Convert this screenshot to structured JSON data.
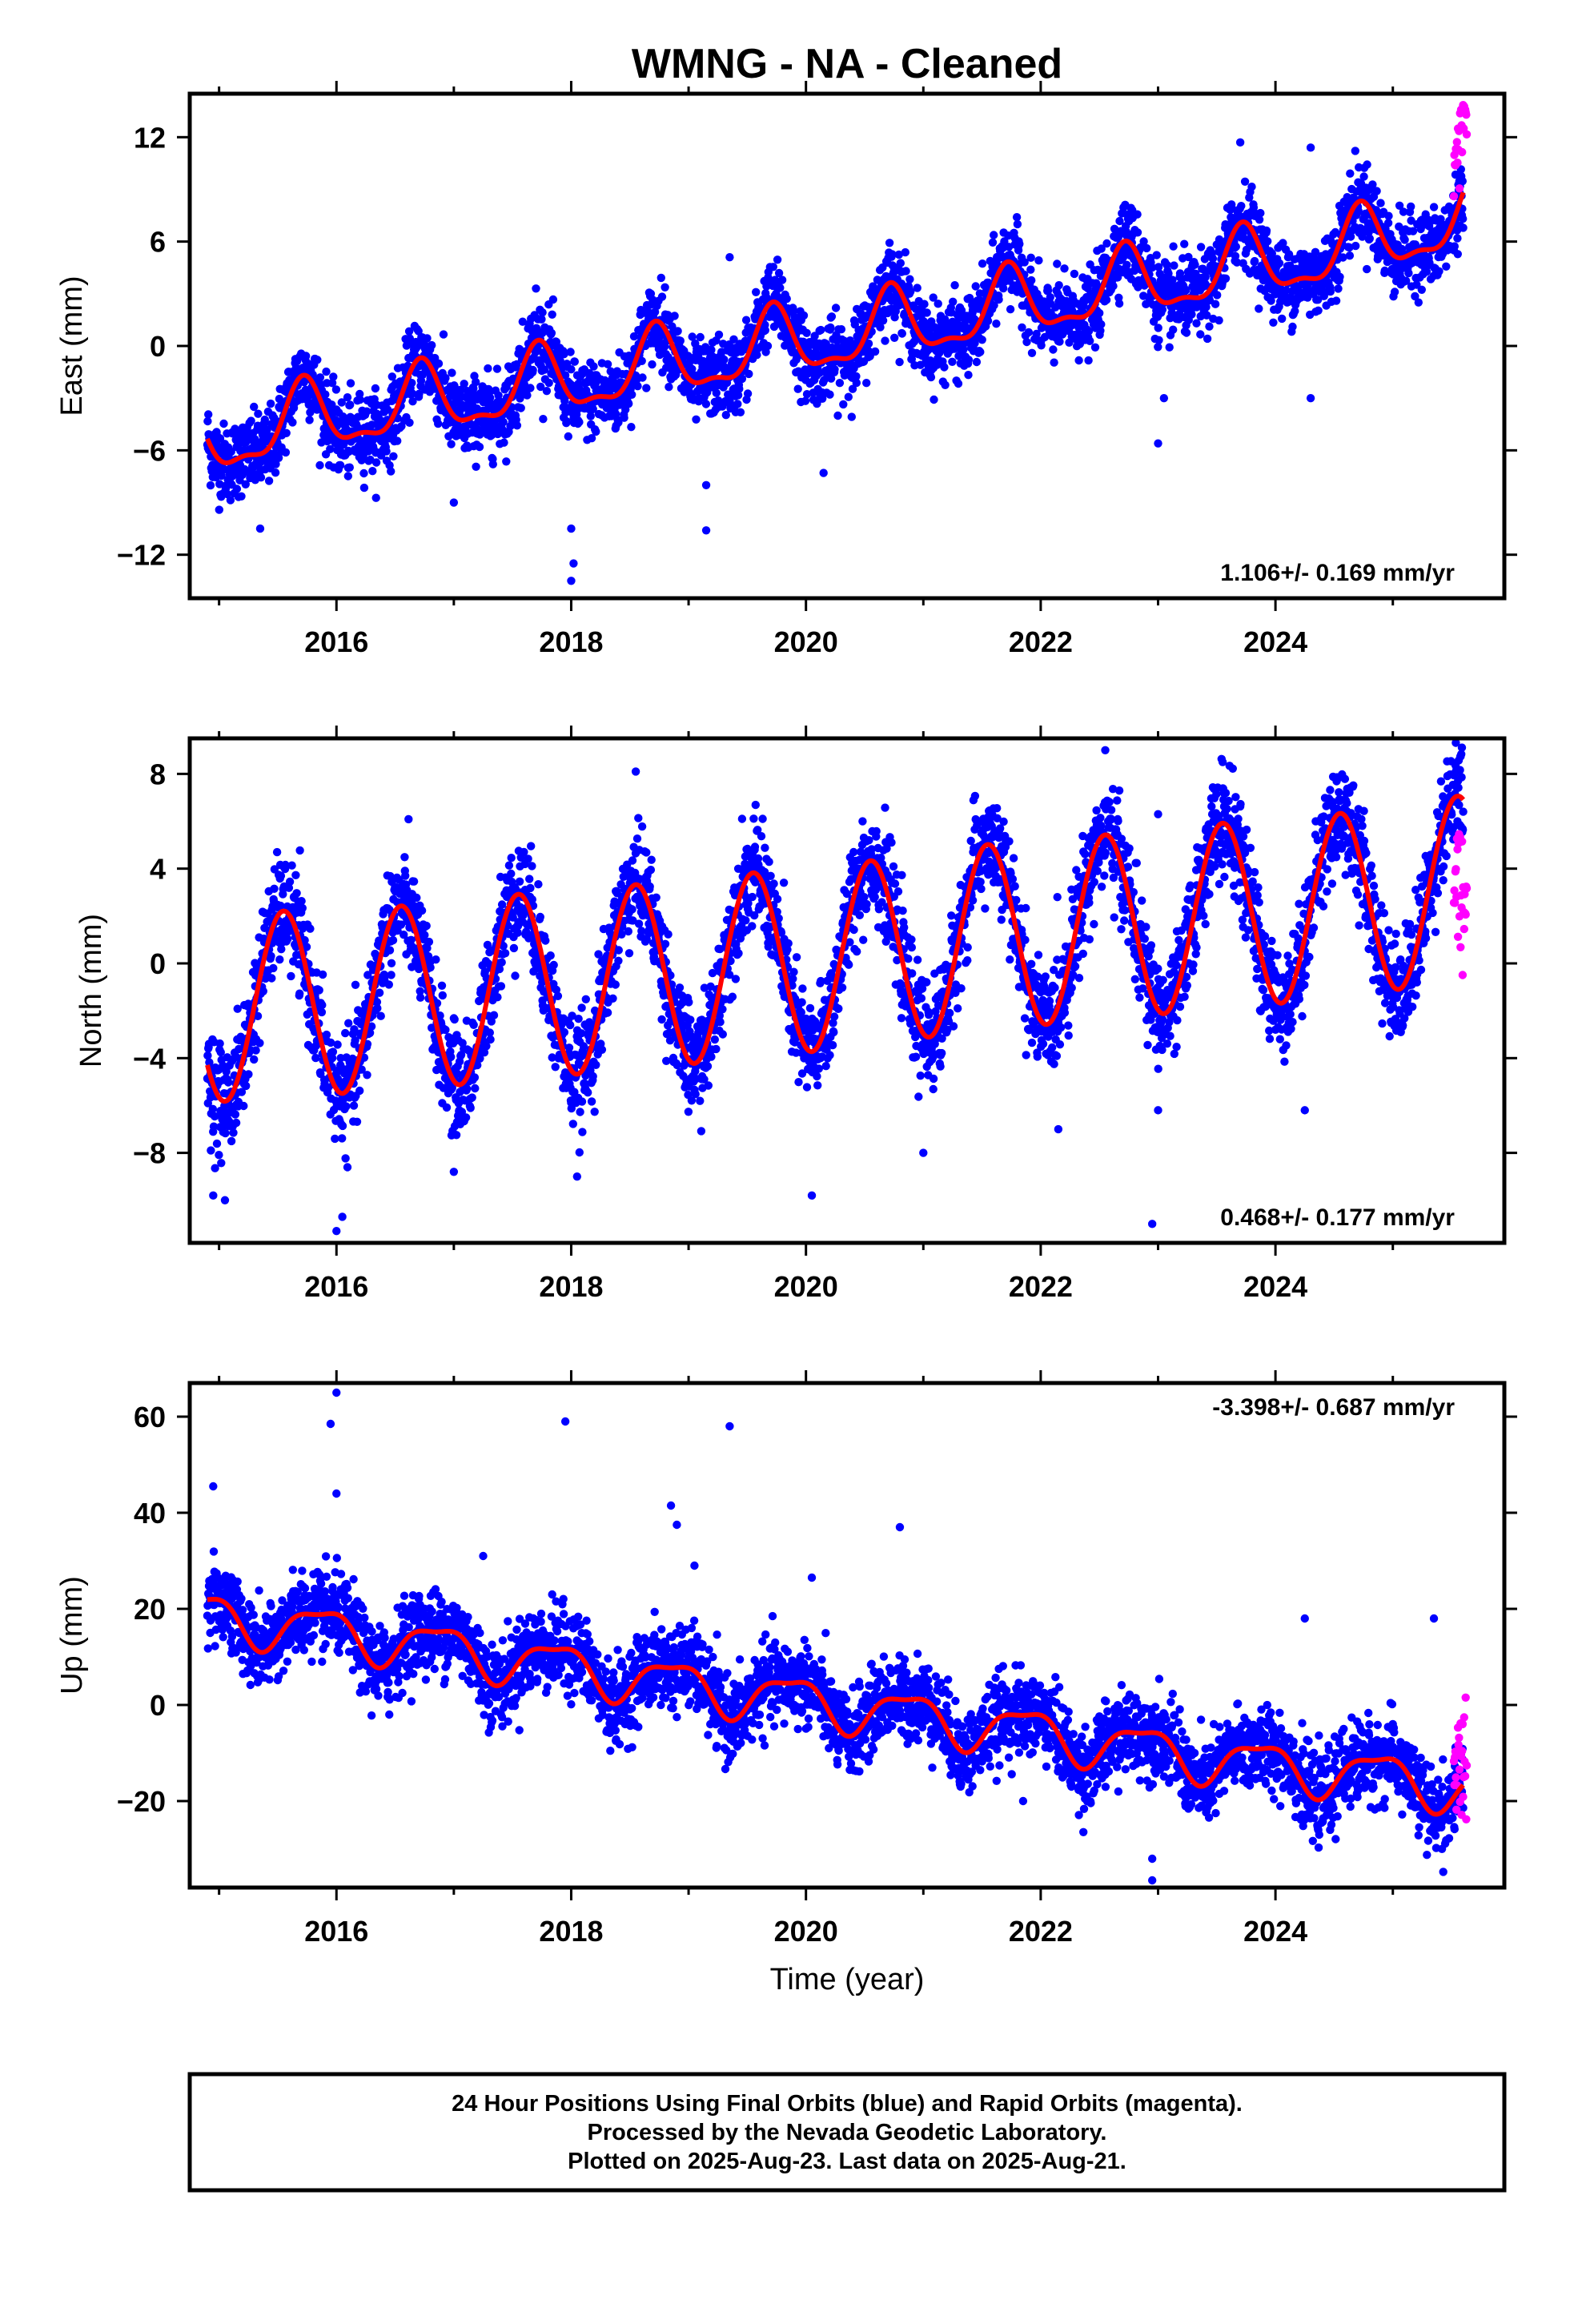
{
  "title": "WMNG  - NA - Cleaned",
  "footer": {
    "line1": "24 Hour Positions Using Final Orbits (blue) and Rapid Orbits (magenta).",
    "line2": "Processed by the Nevada Geodetic Laboratory.",
    "line3": "Plotted on 2025-Aug-23. Last data on 2025-Aug-21."
  },
  "colors": {
    "final": "#0000ff",
    "rapid": "#ff00ff",
    "model": "#ff0000",
    "frame": "#000000"
  },
  "chart_data": [
    {
      "type": "scatter",
      "component": "east",
      "ylabel": "East (mm)",
      "xlabel": "",
      "xlim": [
        2014.75,
        2025.95
      ],
      "ylim": [
        -14.5,
        14.5
      ],
      "xticks": [
        2016,
        2018,
        2020,
        2022,
        2024
      ],
      "xtick_labels": [
        "2016",
        "2018",
        "2020",
        "2022",
        "2024"
      ],
      "yticks": [
        -12,
        -6,
        0,
        6,
        12
      ],
      "ytick_labels": [
        "−12",
        "−6",
        "0",
        "6",
        "12"
      ],
      "rate_label": "1.106+/- 0.169 mm/yr",
      "rate_position": "bottom-right",
      "model": {
        "start": 2014.9,
        "end": 2025.6,
        "trend_points": [
          [
            2014.9,
            -5.7
          ],
          [
            2015.6,
            -4.4
          ],
          [
            2016.6,
            -3.4
          ],
          [
            2017.6,
            -2.4
          ],
          [
            2018.6,
            -1.3
          ],
          [
            2019.6,
            -0.2
          ],
          [
            2020.6,
            0.9
          ],
          [
            2021.6,
            2.1
          ],
          [
            2022.6,
            3.3
          ],
          [
            2023.6,
            4.4
          ],
          [
            2024.6,
            5.5
          ],
          [
            2025.6,
            7.4
          ]
        ],
        "annual_amp": 1.9,
        "annual_peak": 0.72,
        "semiannual_amp": 0.7,
        "semiannual_peak": 0.72
      },
      "noise": 1.1,
      "rapid": {
        "start": 2025.52,
        "end": 2025.63,
        "offset": 4.0,
        "spread": 1.5
      },
      "outliers": [
        [
          2018.0,
          -13.5
        ],
        [
          2018.02,
          -12.5
        ],
        [
          2018.0,
          -10.5
        ],
        [
          2019.15,
          -10.6
        ],
        [
          2019.15,
          -8.0
        ],
        [
          2020.15,
          -7.3
        ],
        [
          2017.0,
          -9.0
        ],
        [
          2015.35,
          -10.5
        ],
        [
          2023.0,
          -5.6
        ],
        [
          2023.05,
          -3.0
        ],
        [
          2024.3,
          -3.0
        ],
        [
          2024.3,
          11.4
        ],
        [
          2019.35,
          5.1
        ],
        [
          2023.7,
          11.7
        ],
        [
          2017.7,
          3.3
        ],
        [
          2016.1,
          -7.0
        ]
      ]
    },
    {
      "type": "scatter",
      "component": "north",
      "ylabel": "North (mm)",
      "xlabel": "",
      "xlim": [
        2014.75,
        2025.95
      ],
      "ylim": [
        -11.8,
        9.5
      ],
      "xticks": [
        2016,
        2018,
        2020,
        2022,
        2024
      ],
      "xtick_labels": [
        "2016",
        "2018",
        "2020",
        "2022",
        "2024"
      ],
      "yticks": [
        -8,
        -4,
        0,
        4,
        8
      ],
      "ytick_labels": [
        "−8",
        "−4",
        "0",
        "4",
        "8"
      ],
      "rate_label": "0.468+/- 0.177 mm/yr",
      "rate_position": "bottom-right",
      "model": {
        "start": 2014.9,
        "end": 2025.6,
        "trend_points": [
          [
            2014.9,
            -2.0
          ],
          [
            2015.5,
            -1.7
          ],
          [
            2016.5,
            -1.5
          ],
          [
            2017.5,
            -1.0
          ],
          [
            2018.5,
            -0.6
          ],
          [
            2019.5,
            -0.1
          ],
          [
            2020.5,
            0.4
          ],
          [
            2021.5,
            1.1
          ],
          [
            2022.5,
            1.5
          ],
          [
            2023.5,
            2.0
          ],
          [
            2024.5,
            2.4
          ],
          [
            2025.6,
            3.2
          ]
        ],
        "annual_amp": 3.9,
        "annual_peak": 0.55,
        "semiannual_amp": 0.0,
        "semiannual_peak": 0.0
      },
      "noise": 1.1,
      "rapid": {
        "start": 2025.52,
        "end": 2025.63,
        "offset": -4.0,
        "spread": 1.8
      },
      "outliers": [
        [
          2016.0,
          -11.3
        ],
        [
          2016.05,
          -10.7
        ],
        [
          2015.05,
          -10.0
        ],
        [
          2014.95,
          -9.8
        ],
        [
          2020.05,
          -9.8
        ],
        [
          2018.05,
          -9.0
        ],
        [
          2021.0,
          -8.0
        ],
        [
          2017.0,
          -8.8
        ],
        [
          2022.55,
          9.0
        ],
        [
          2018.55,
          8.1
        ],
        [
          2023.55,
          8.5
        ],
        [
          2023.0,
          6.3
        ],
        [
          2023.0,
          -6.2
        ],
        [
          2024.25,
          -6.2
        ],
        [
          2022.15,
          -7.0
        ],
        [
          2022.95,
          -11.0
        ]
      ]
    },
    {
      "type": "scatter",
      "component": "up",
      "ylabel": "Up (mm)",
      "xlabel": "Time (year)",
      "xlim": [
        2014.75,
        2025.95
      ],
      "ylim": [
        -38,
        67
      ],
      "xticks": [
        2016,
        2018,
        2020,
        2022,
        2024
      ],
      "xtick_labels": [
        "2016",
        "2018",
        "2020",
        "2022",
        "2024"
      ],
      "yticks": [
        -20,
        0,
        20,
        40,
        60
      ],
      "ytick_labels": [
        "−20",
        "0",
        "20",
        "40",
        "60"
      ],
      "rate_label": "-3.398+/- 0.687 mm/yr",
      "rate_position": "top-right",
      "model": {
        "start": 2014.9,
        "end": 2025.6,
        "trend_points": [
          [
            2014.9,
            18.5
          ],
          [
            2016.0,
            15.2
          ],
          [
            2017.0,
            11.5
          ],
          [
            2018.0,
            7.8
          ],
          [
            2019.0,
            4.0
          ],
          [
            2020.0,
            0.9
          ],
          [
            2021.0,
            -2.6
          ],
          [
            2022.0,
            -5.8
          ],
          [
            2023.0,
            -9.6
          ],
          [
            2024.0,
            -12.8
          ],
          [
            2025.0,
            -15.0
          ],
          [
            2025.6,
            -17.6
          ]
        ],
        "annual_amp": 4.7,
        "annual_peak": 0.87,
        "semiannual_amp": 1.5,
        "semiannual_peak": 0.1
      },
      "noise": 4.2,
      "rapid": {
        "start": 2025.52,
        "end": 2025.63,
        "offset": 5.0,
        "spread": 7.0
      },
      "outliers": [
        [
          2016.0,
          65.0
        ],
        [
          2015.95,
          58.5
        ],
        [
          2017.95,
          59.0
        ],
        [
          2019.35,
          58.0
        ],
        [
          2018.85,
          41.5
        ],
        [
          2018.9,
          37.5
        ],
        [
          2020.8,
          37.0
        ],
        [
          2014.95,
          45.5
        ],
        [
          2016.0,
          44.0
        ],
        [
          2017.25,
          31.0
        ],
        [
          2019.05,
          29.0
        ],
        [
          2020.05,
          26.5
        ],
        [
          2022.95,
          -36.5
        ],
        [
          2022.95,
          -32.0
        ],
        [
          2024.25,
          18.0
        ],
        [
          2025.35,
          18.0
        ],
        [
          2016.45,
          -2.0
        ],
        [
          2021.85,
          -20.0
        ]
      ]
    }
  ]
}
